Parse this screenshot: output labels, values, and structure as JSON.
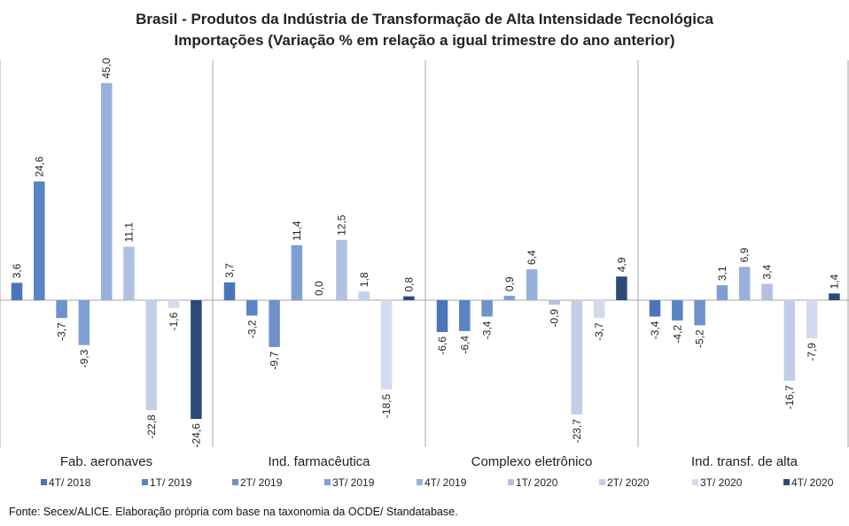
{
  "title_line1": "Brasil - Produtos da Indústria de Transformação  de Alta Intensidade Tecnológica",
  "title_line2": "Importações  (Variação % em relação  a igual trimestre  do ano anterior)",
  "source": "Fonte: Secex/ALICE. Elaboração  própria  com base na taxonomia da OCDE/ Standatabase.",
  "chart_data": {
    "type": "bar",
    "title": "Brasil - Produtos da Indústria de Transformação de Alta Intensidade Tecnológica — Importações (Variação % em relação a igual trimestre do ano anterior)",
    "xlabel": "",
    "ylabel": "",
    "ylim": [
      -30,
      50
    ],
    "grid": false,
    "legend_position": "bottom",
    "categories": [
      "Fab. aeronaves",
      "Ind. farmacêutica",
      "Complexo eletrônico",
      "Ind. transf. de alta"
    ],
    "series": [
      {
        "name": "4T/ 2018",
        "color": "#4a76b8",
        "values": [
          3.6,
          3.7,
          -6.6,
          -3.4
        ],
        "labels": [
          "3,6",
          "3,7",
          "-6,6",
          "-3,4"
        ]
      },
      {
        "name": "1T/ 2019",
        "color": "#5a85c4",
        "values": [
          24.6,
          -3.2,
          -6.4,
          -4.2
        ],
        "labels": [
          "24,6",
          "-3,2",
          "-6,4",
          "-4,2"
        ]
      },
      {
        "name": "2T/ 2019",
        "color": "#6e92c9",
        "values": [
          -3.7,
          -9.7,
          -3.4,
          -5.2
        ],
        "labels": [
          "-3,7",
          "-9,7",
          "-3,4",
          "-5,2"
        ]
      },
      {
        "name": "3T/ 2019",
        "color": "#7e9fd1",
        "values": [
          -9.3,
          11.4,
          0.9,
          3.1
        ],
        "labels": [
          "-9,3",
          "11,4",
          "0,9",
          "3,1"
        ]
      },
      {
        "name": "4T/ 2019",
        "color": "#98b0dc",
        "values": [
          45.0,
          0.0,
          6.4,
          6.9
        ],
        "labels": [
          "45,0",
          "0,0",
          "6,4",
          "6,9"
        ]
      },
      {
        "name": "1T/ 2020",
        "color": "#b0c1e2",
        "values": [
          11.1,
          12.5,
          -0.9,
          3.4
        ],
        "labels": [
          "11,1",
          "12,5",
          "-0,9",
          "3,4"
        ]
      },
      {
        "name": "2T/ 2020",
        "color": "#c3cfe7",
        "values": [
          -22.8,
          1.8,
          -23.7,
          -16.7
        ],
        "labels": [
          "-22,8",
          "1,8",
          "-23,7",
          "-16,7"
        ]
      },
      {
        "name": "3T/ 2020",
        "color": "#d3dcee",
        "values": [
          -1.6,
          -18.5,
          -3.7,
          -7.9
        ],
        "labels": [
          "-1,6",
          "-18,5",
          "-3,7",
          "-7,9"
        ]
      },
      {
        "name": "4T/ 2020",
        "color": "#2c4a78",
        "values": [
          -24.6,
          0.8,
          4.9,
          1.4
        ],
        "labels": [
          "-24,6",
          "0,8",
          "4,9",
          "1,4"
        ]
      }
    ]
  }
}
